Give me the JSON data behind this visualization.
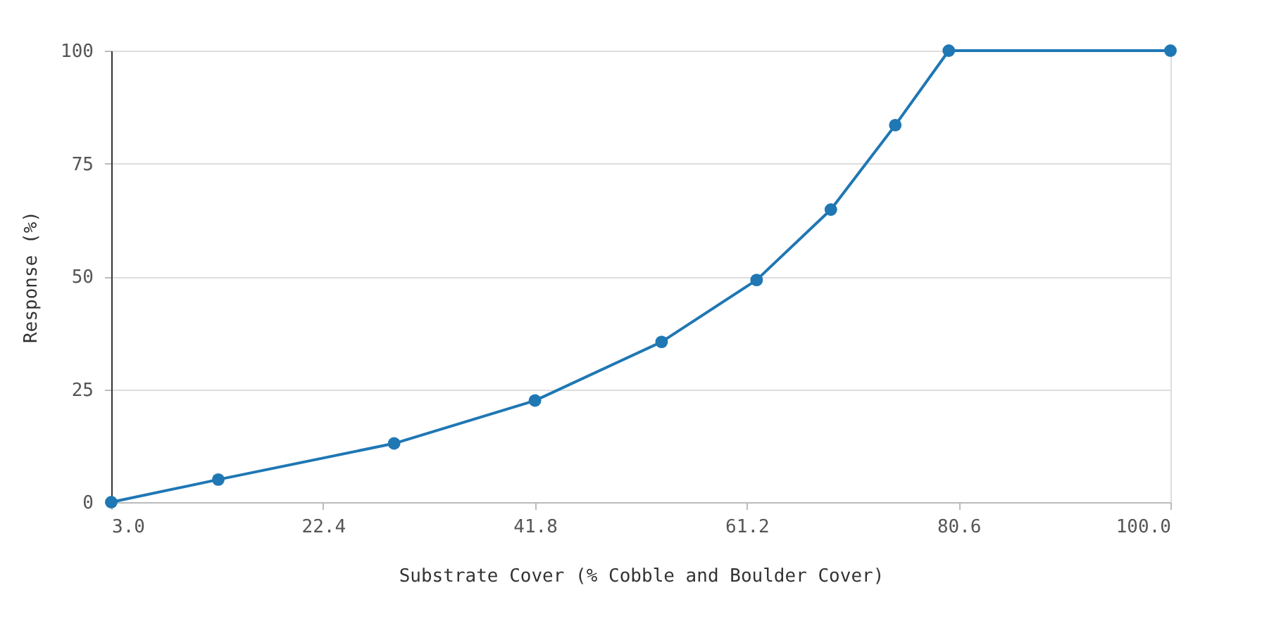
{
  "chart_data": {
    "type": "line",
    "xlabel": "Substrate Cover (% Cobble and Boulder Cover)",
    "ylabel": "Response (%)",
    "x": [
      3.0,
      12.8,
      28.9,
      41.8,
      53.4,
      62.1,
      68.9,
      74.8,
      79.7,
      100.0
    ],
    "series": [
      {
        "color": "#1f77b4",
        "values": [
          0,
          5,
          13,
          22.5,
          35.5,
          49.2,
          64.8,
          83.5,
          100,
          100
        ]
      }
    ],
    "xlim": [
      3.0,
      100.0
    ],
    "xticks": [
      {
        "value": 3.0,
        "label": "3.0"
      },
      {
        "value": 22.4,
        "label": "22.4"
      },
      {
        "value": 41.8,
        "label": "41.8"
      },
      {
        "value": 61.2,
        "label": "61.2"
      },
      {
        "value": 80.6,
        "label": "80.6"
      },
      {
        "value": 100.0,
        "label": "100.0"
      }
    ],
    "ylim": [
      0,
      100
    ],
    "yticks": [
      0,
      25,
      50,
      75,
      100
    ],
    "grid": "y",
    "marker": "circle",
    "line_style": "solid"
  }
}
